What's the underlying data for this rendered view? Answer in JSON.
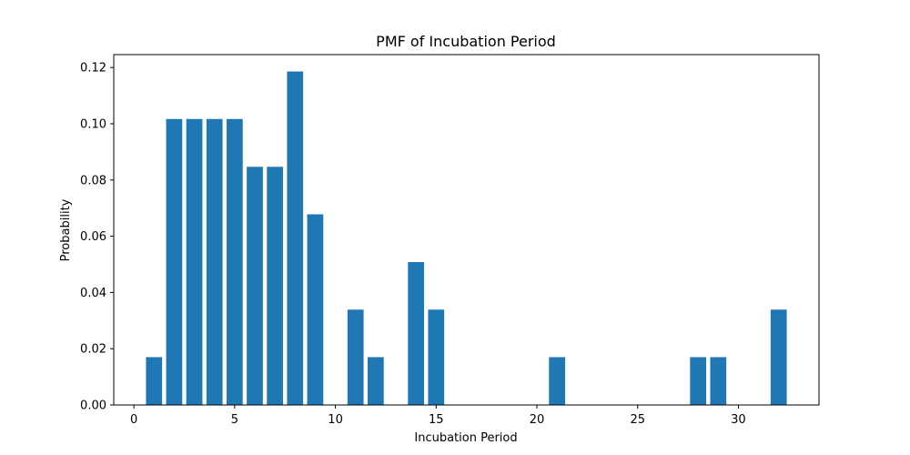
{
  "chart_data": {
    "type": "bar",
    "title": "PMF of Incubation Period",
    "xlabel": "Incubation Period",
    "ylabel": "Probability",
    "x": [
      1,
      2,
      3,
      4,
      5,
      6,
      7,
      8,
      9,
      11,
      12,
      14,
      15,
      21,
      28,
      29,
      32
    ],
    "values": [
      0.017,
      0.1017,
      0.1017,
      0.1017,
      0.1017,
      0.0847,
      0.0847,
      0.1186,
      0.0678,
      0.0339,
      0.017,
      0.0508,
      0.0339,
      0.017,
      0.017,
      0.017,
      0.0339
    ],
    "xlim": [
      -1.0,
      34.0
    ],
    "ylim": [
      0,
      0.1246
    ],
    "xticks": [
      0,
      5,
      10,
      15,
      20,
      25,
      30
    ],
    "xtick_labels": [
      "0",
      "5",
      "10",
      "15",
      "20",
      "25",
      "30"
    ],
    "yticks": [
      0.0,
      0.02,
      0.04,
      0.06,
      0.08,
      0.1,
      0.12
    ],
    "ytick_labels": [
      "0.00",
      "0.02",
      "0.04",
      "0.06",
      "0.08",
      "0.10",
      "0.12"
    ],
    "bar_color": "#1f77b4",
    "grid": false,
    "legend": "none"
  }
}
